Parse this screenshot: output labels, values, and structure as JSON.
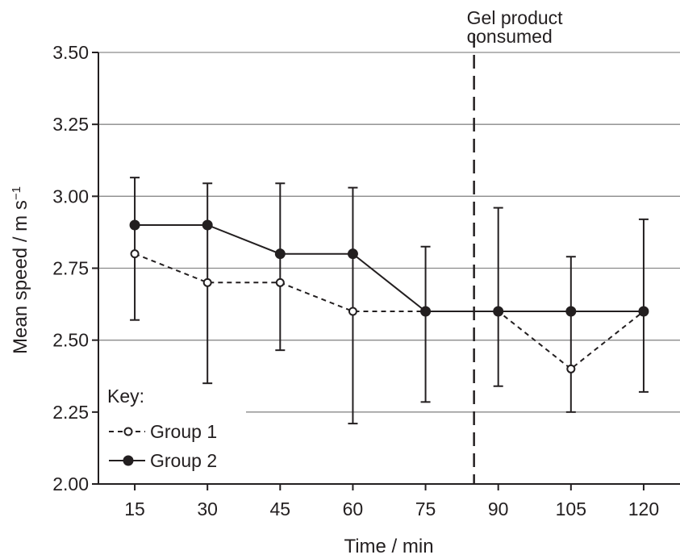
{
  "chart_data": {
    "type": "line",
    "title": "",
    "xlabel": "Time / min",
    "ylabel": "Mean speed / m s",
    "ylabel_superscript": "−1",
    "x": [
      15,
      30,
      45,
      60,
      75,
      90,
      105,
      120
    ],
    "x_tick_labels": [
      "15",
      "30",
      "45",
      "60",
      "75",
      "90",
      "105",
      "120"
    ],
    "y_tick_labels": [
      "2.00",
      "2.25",
      "2.50",
      "2.75",
      "3.00",
      "3.25",
      "3.50"
    ],
    "y_ticks": [
      2.0,
      2.25,
      2.5,
      2.75,
      3.0,
      3.25,
      3.5
    ],
    "xlim": [
      7.5,
      127.5
    ],
    "ylim": [
      2.0,
      3.5
    ],
    "grid": "horizontal",
    "series": [
      {
        "name": "Group 1",
        "line": "dashed",
        "marker": "open-circle",
        "values": [
          2.8,
          2.7,
          2.7,
          2.6,
          2.6,
          2.6,
          2.4,
          2.6
        ],
        "error_low": [
          2.57,
          2.35,
          2.465,
          2.21,
          2.285,
          2.34,
          2.25,
          2.32
        ],
        "error_high": [
          3.065,
          3.045,
          3.045,
          3.03,
          2.825,
          2.96,
          2.79,
          2.92
        ]
      },
      {
        "name": "Group 2",
        "line": "solid",
        "marker": "filled-circle",
        "values": [
          2.9,
          2.9,
          2.8,
          2.8,
          2.6,
          2.6,
          2.6,
          2.6
        ]
      }
    ],
    "legend": {
      "title": "Key:",
      "placement": "bottom-left"
    },
    "annotation": {
      "x": 85,
      "style": "dashed-vertical-line",
      "lines": [
        "Gel product",
        "consumed"
      ]
    },
    "colors": {
      "ink": "#231f20",
      "grid": "#8a8a8a",
      "background": "#ffffff"
    }
  }
}
